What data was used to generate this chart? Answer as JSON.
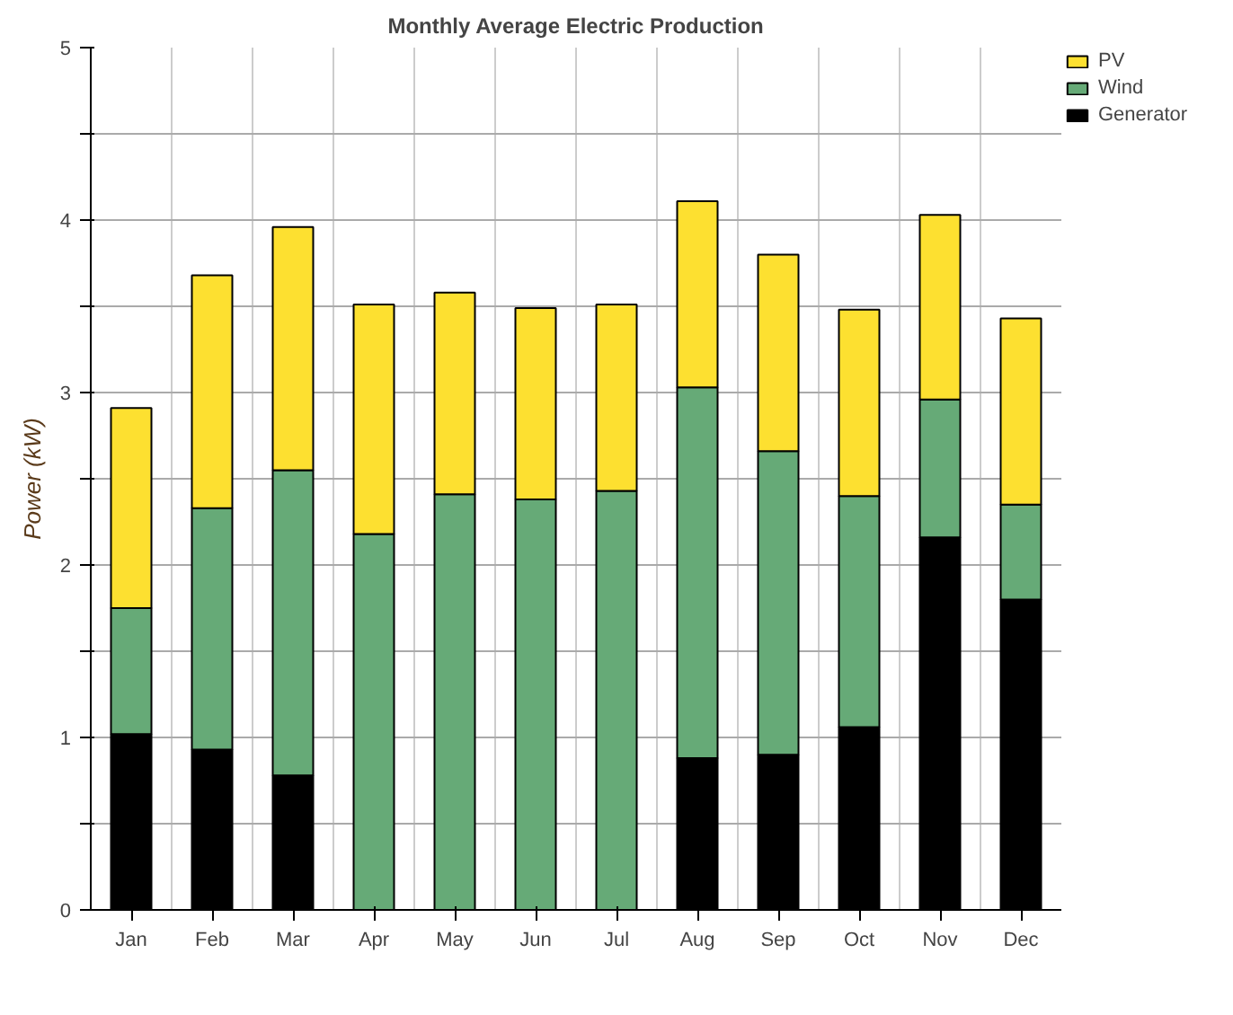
{
  "chart_data": {
    "type": "bar",
    "title": "Monthly Average Electric Production",
    "ylabel": "Power (kW)",
    "categories": [
      "Jan",
      "Feb",
      "Mar",
      "Apr",
      "May",
      "Jun",
      "Jul",
      "Aug",
      "Sep",
      "Oct",
      "Nov",
      "Dec"
    ],
    "stacked": true,
    "series": [
      {
        "name": "Generator",
        "color": "#000000",
        "values": [
          1.02,
          0.93,
          0.78,
          null,
          null,
          null,
          null,
          0.88,
          0.9,
          1.06,
          2.16,
          1.8
        ]
      },
      {
        "name": "Wind",
        "color": "#66aa77",
        "values": [
          0.73,
          1.4,
          1.77,
          2.18,
          2.41,
          2.38,
          2.43,
          2.15,
          1.76,
          1.34,
          0.8,
          0.55
        ]
      },
      {
        "name": "PV",
        "color": "#fde030",
        "values": [
          1.16,
          1.35,
          1.41,
          1.33,
          1.17,
          1.11,
          1.08,
          1.08,
          1.14,
          1.08,
          1.07,
          1.08
        ]
      }
    ],
    "ylim": [
      0,
      5
    ],
    "yticks": [
      0,
      {
        "value": 0.5,
        "label": null
      },
      1,
      {
        "value": 1.5,
        "label": null
      },
      2,
      {
        "value": 2.5,
        "label": null
      },
      3,
      {
        "value": 3.5,
        "label": null
      },
      4,
      {
        "value": 4.5,
        "label": null
      },
      5
    ],
    "grid": true,
    "legend": "top right"
  }
}
